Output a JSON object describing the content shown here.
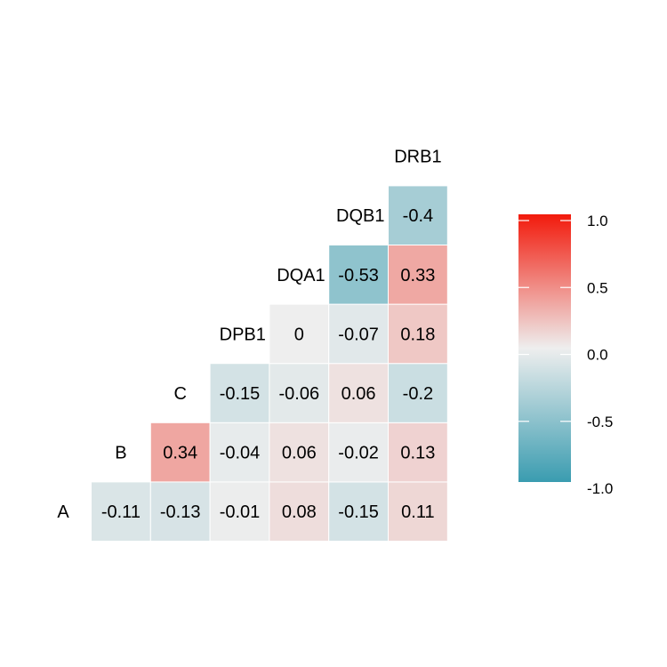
{
  "chart_data": {
    "type": "heatmap",
    "title": "",
    "variables": [
      "A",
      "B",
      "C",
      "DPB1",
      "DQA1",
      "DQB1",
      "DRB1"
    ],
    "cells": [
      {
        "row": "B",
        "col": "A",
        "value": -0.11,
        "label": "-0.11"
      },
      {
        "row": "C",
        "col": "A",
        "value": -0.13,
        "label": "-0.13"
      },
      {
        "row": "DPB1",
        "col": "A",
        "value": -0.01,
        "label": "-0.01"
      },
      {
        "row": "DQA1",
        "col": "A",
        "value": 0.08,
        "label": "0.08"
      },
      {
        "row": "DQB1",
        "col": "A",
        "value": -0.15,
        "label": "-0.15"
      },
      {
        "row": "DRB1",
        "col": "A",
        "value": 0.11,
        "label": "0.11"
      },
      {
        "row": "C",
        "col": "B",
        "value": 0.34,
        "label": "0.34"
      },
      {
        "row": "DPB1",
        "col": "B",
        "value": -0.04,
        "label": "-0.04"
      },
      {
        "row": "DQA1",
        "col": "B",
        "value": 0.06,
        "label": "0.06"
      },
      {
        "row": "DQB1",
        "col": "B",
        "value": -0.02,
        "label": "-0.02"
      },
      {
        "row": "DRB1",
        "col": "B",
        "value": 0.13,
        "label": "0.13"
      },
      {
        "row": "DPB1",
        "col": "C",
        "value": -0.15,
        "label": "-0.15"
      },
      {
        "row": "DQA1",
        "col": "C",
        "value": -0.06,
        "label": "-0.06"
      },
      {
        "row": "DQB1",
        "col": "C",
        "value": 0.06,
        "label": "0.06"
      },
      {
        "row": "DRB1",
        "col": "C",
        "value": -0.2,
        "label": "-0.2"
      },
      {
        "row": "DQA1",
        "col": "DPB1",
        "value": 0,
        "label": "0"
      },
      {
        "row": "DQB1",
        "col": "DPB1",
        "value": -0.07,
        "label": "-0.07"
      },
      {
        "row": "DRB1",
        "col": "DPB1",
        "value": 0.18,
        "label": "0.18"
      },
      {
        "row": "DQB1",
        "col": "DQA1",
        "value": -0.53,
        "label": "-0.53"
      },
      {
        "row": "DRB1",
        "col": "DQA1",
        "value": 0.33,
        "label": "0.33"
      },
      {
        "row": "DRB1",
        "col": "DQB1",
        "value": -0.4,
        "label": "-0.4"
      }
    ],
    "color_scale": {
      "min": -1.0,
      "mid": 0.0,
      "max": 1.0,
      "low_color": "#3a9cb0",
      "mid_color": "#eeeeee",
      "high_color": "#f21a0c"
    },
    "legend": {
      "position": "right",
      "ticks": [
        {
          "value": 1.0,
          "label": "1.0"
        },
        {
          "value": 0.5,
          "label": "0.5"
        },
        {
          "value": 0.0,
          "label": "0.0"
        },
        {
          "value": -0.5,
          "label": "-0.5"
        },
        {
          "value": -1.0,
          "label": "-1.0"
        }
      ]
    }
  }
}
